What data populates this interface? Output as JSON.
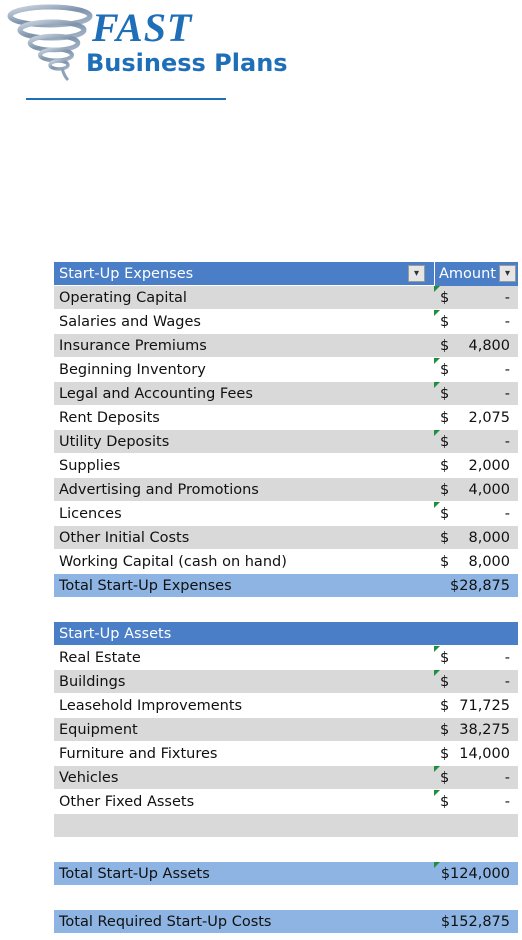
{
  "logo": {
    "word1": "FAST",
    "word2": "Business Plans"
  },
  "colors": {
    "brand": "#1f6fb8",
    "header": "#4a7ec7",
    "total": "#8db4e2",
    "shade": "#d9d9d9"
  },
  "expenses": {
    "header": "Start-Up Expenses",
    "amount_header": "Amount",
    "rows": [
      {
        "label": "Operating Capital",
        "dollar": "$",
        "value": "-",
        "flag": true
      },
      {
        "label": "Salaries and Wages",
        "dollar": "$",
        "value": "-",
        "flag": true
      },
      {
        "label": "Insurance Premiums",
        "dollar": "$",
        "value": "4,800",
        "flag": false
      },
      {
        "label": "Beginning Inventory",
        "dollar": "$",
        "value": "-",
        "flag": true
      },
      {
        "label": "Legal and Accounting Fees",
        "dollar": "$",
        "value": "-",
        "flag": true
      },
      {
        "label": "Rent Deposits",
        "dollar": "$",
        "value": "2,075",
        "flag": false
      },
      {
        "label": "Utility Deposits",
        "dollar": "$",
        "value": "-",
        "flag": true
      },
      {
        "label": "Supplies",
        "dollar": "$",
        "value": "2,000",
        "flag": false
      },
      {
        "label": "Advertising and Promotions",
        "dollar": "$",
        "value": "4,000",
        "flag": false
      },
      {
        "label": "Licences",
        "dollar": "$",
        "value": "-",
        "flag": true
      },
      {
        "label": "Other Initial Costs",
        "dollar": "$",
        "value": "8,000",
        "flag": false
      },
      {
        "label": "Working Capital (cash on hand)",
        "dollar": "$",
        "value": "8,000",
        "flag": false
      }
    ],
    "total_label": "Total Start-Up Expenses",
    "total_value": "$28,875"
  },
  "assets": {
    "header": "Start-Up Assets",
    "rows": [
      {
        "label": "Real Estate",
        "dollar": "$",
        "value": "-",
        "flag": true
      },
      {
        "label": "Buildings",
        "dollar": "$",
        "value": "-",
        "flag": true
      },
      {
        "label": "Leasehold Improvements",
        "dollar": "$",
        "value": "71,725",
        "flag": false
      },
      {
        "label": "Equipment",
        "dollar": "$",
        "value": "38,275",
        "flag": false
      },
      {
        "label": "Furniture and Fixtures",
        "dollar": "$",
        "value": "14,000",
        "flag": false
      },
      {
        "label": "Vehicles",
        "dollar": "$",
        "value": "-",
        "flag": true
      },
      {
        "label": "Other Fixed Assets",
        "dollar": "$",
        "value": "-",
        "flag": true
      }
    ],
    "total_label": "Total Start-Up Assets",
    "total_value": "$124,000"
  },
  "grand_total": {
    "label": "Total Required Start-Up Costs",
    "value": "$152,875"
  }
}
